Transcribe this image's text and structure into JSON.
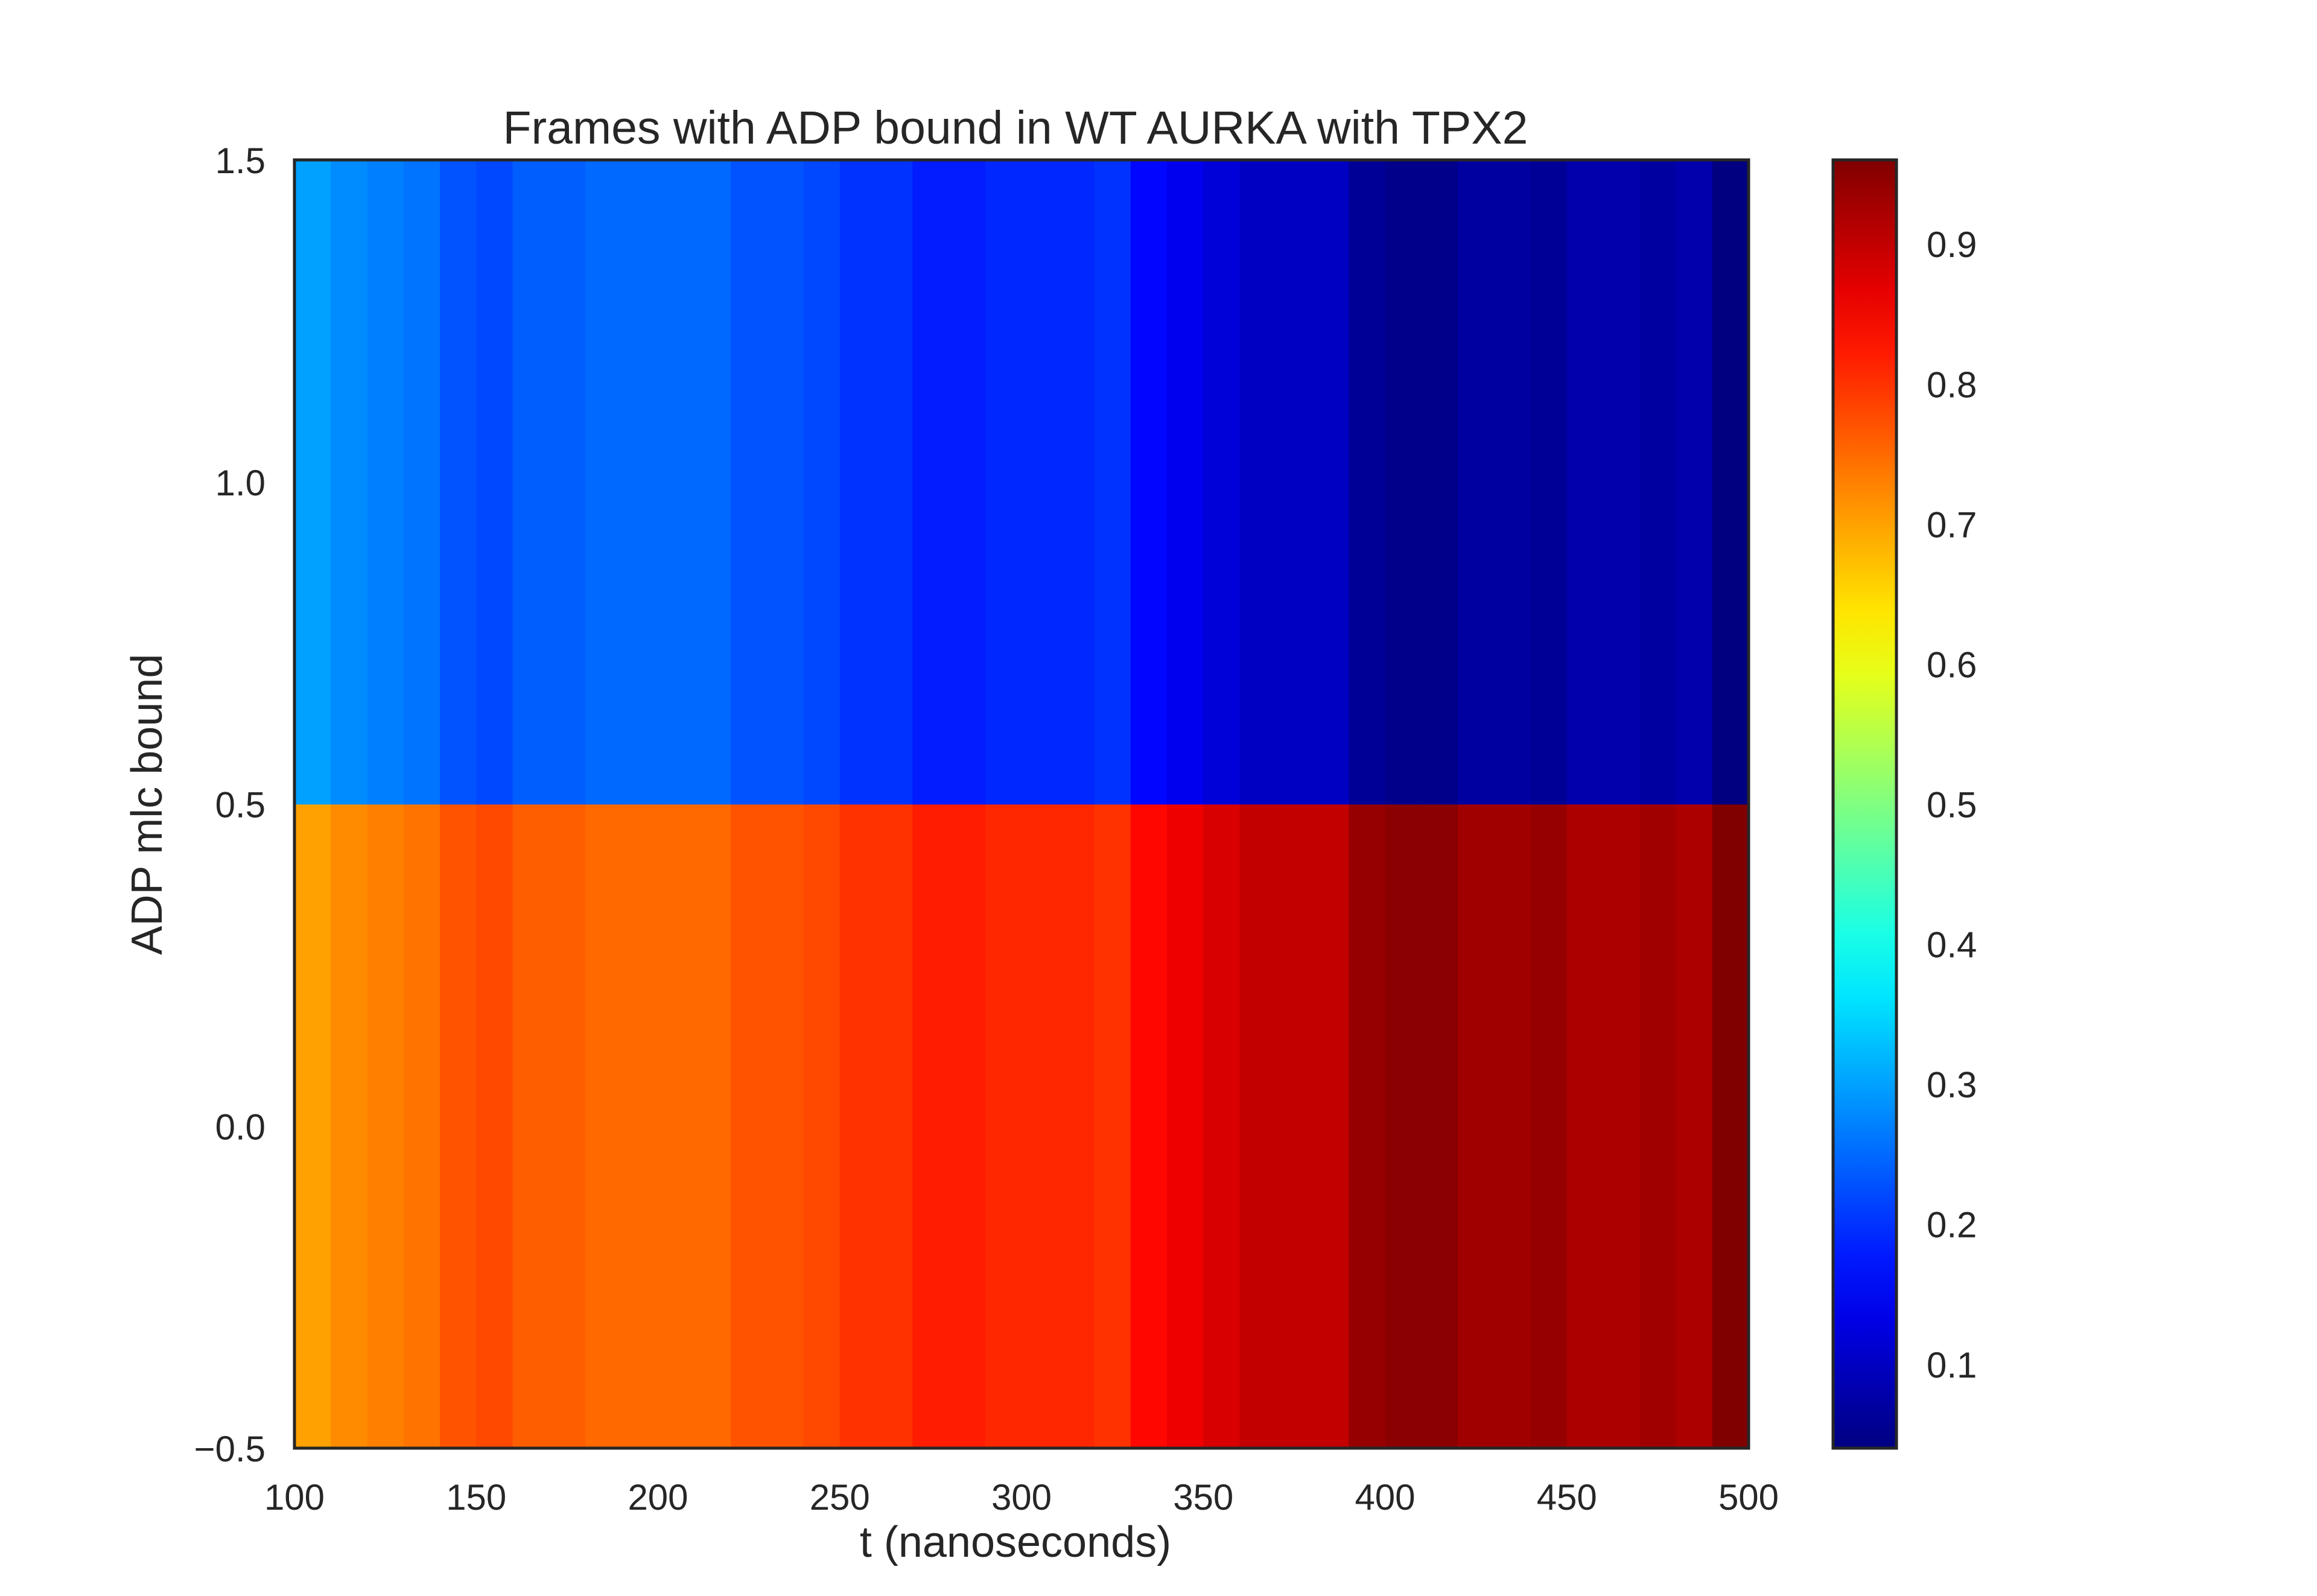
{
  "chart_data": {
    "type": "heatmap",
    "title": "Frames with ADP bound in WT AURKA with TPX2",
    "xlabel": "t (nanoseconds)",
    "ylabel": "ADP mlc bound",
    "xlim": [
      100,
      500
    ],
    "ylim": [
      -0.5,
      1.5
    ],
    "x_ticks": [
      "100",
      "150",
      "200",
      "250",
      "300",
      "350",
      "400",
      "450",
      "500"
    ],
    "y_ticks": [
      "−0.5",
      "0.0",
      "0.5",
      "1.0",
      "1.5"
    ],
    "colormap": "jet",
    "colorbar": {
      "range": [
        0.04,
        0.96
      ],
      "ticks": [
        "0.1",
        "0.2",
        "0.3",
        "0.4",
        "0.5",
        "0.6",
        "0.7",
        "0.8",
        "0.9"
      ]
    },
    "bin_width": 10,
    "x_bin_starts": [
      100,
      110,
      120,
      130,
      140,
      150,
      160,
      170,
      180,
      190,
      200,
      210,
      220,
      230,
      240,
      250,
      260,
      270,
      280,
      290,
      300,
      310,
      320,
      330,
      340,
      350,
      360,
      370,
      380,
      390,
      400,
      410,
      420,
      430,
      440,
      450,
      460,
      470,
      480,
      490
    ],
    "rows": [
      {
        "y_range": [
          -0.5,
          0.5
        ],
        "label": "0",
        "values": [
          0.7,
          0.72,
          0.73,
          0.74,
          0.77,
          0.78,
          0.76,
          0.76,
          0.75,
          0.75,
          0.75,
          0.75,
          0.77,
          0.77,
          0.78,
          0.8,
          0.8,
          0.82,
          0.82,
          0.81,
          0.81,
          0.81,
          0.8,
          0.84,
          0.86,
          0.88,
          0.9,
          0.9,
          0.9,
          0.94,
          0.95,
          0.95,
          0.93,
          0.93,
          0.94,
          0.92,
          0.92,
          0.93,
          0.92,
          0.96
        ]
      },
      {
        "y_range": [
          0.5,
          1.5
        ],
        "label": "1",
        "values": [
          0.3,
          0.28,
          0.27,
          0.26,
          0.23,
          0.22,
          0.24,
          0.24,
          0.25,
          0.25,
          0.25,
          0.25,
          0.23,
          0.23,
          0.22,
          0.2,
          0.2,
          0.18,
          0.18,
          0.19,
          0.19,
          0.19,
          0.2,
          0.16,
          0.14,
          0.12,
          0.1,
          0.1,
          0.1,
          0.06,
          0.05,
          0.05,
          0.07,
          0.07,
          0.06,
          0.08,
          0.08,
          0.07,
          0.08,
          0.04
        ]
      }
    ]
  }
}
